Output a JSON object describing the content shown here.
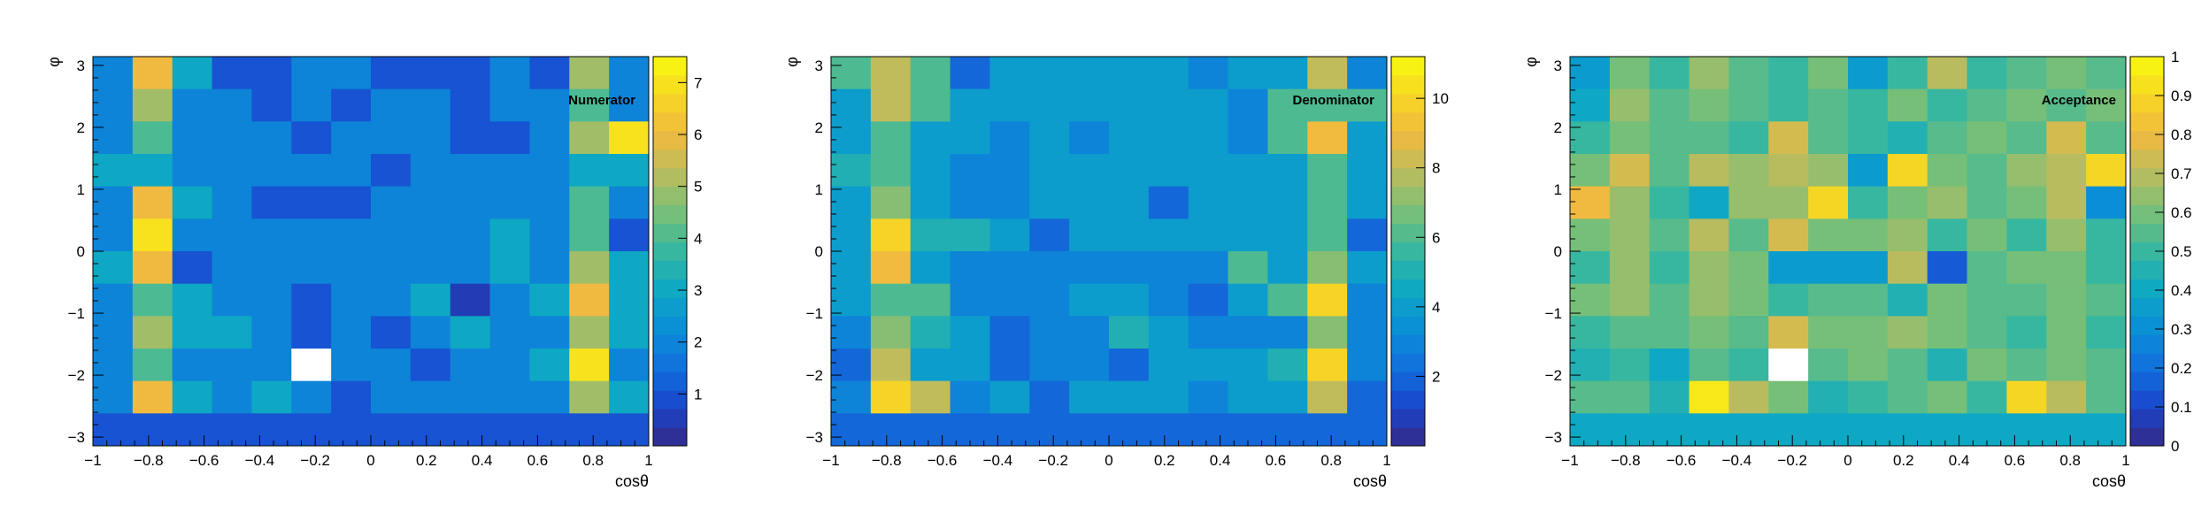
{
  "chart_data": [
    {
      "type": "heatmap",
      "title": "Numerator",
      "xlabel": "cosθ",
      "ylabel": "φ",
      "xlim": [
        -1,
        1
      ],
      "ylim": [
        -3.14159,
        3.14159
      ],
      "x_ticks": [
        "−1",
        "−0.8",
        "−0.6",
        "−0.4",
        "−0.2",
        "0",
        "0.2",
        "0.4",
        "0.6",
        "0.8",
        "1"
      ],
      "y_ticks": [
        "−3",
        "−2",
        "−1",
        "0",
        "1",
        "2",
        "3"
      ],
      "colorbar_ticks": [
        "1",
        "2",
        "3",
        "4",
        "5",
        "6",
        "7"
      ],
      "zlim": [
        0,
        7.5
      ],
      "grid": false,
      "nx": 14,
      "ny": 12,
      "values": [
        [
          2,
          6,
          3,
          1,
          1,
          2,
          2,
          1,
          1,
          1,
          2,
          1,
          5,
          2
        ],
        [
          2,
          5,
          2,
          2,
          1,
          2,
          1,
          2,
          2,
          1,
          2,
          2,
          4,
          2
        ],
        [
          2,
          4,
          2,
          2,
          2,
          1,
          2,
          2,
          2,
          1,
          1,
          2,
          5,
          7
        ],
        [
          3,
          3,
          2,
          2,
          2,
          2,
          2,
          1,
          2,
          2,
          2,
          2,
          3,
          3
        ],
        [
          2,
          6,
          3,
          2,
          1,
          1,
          1,
          2,
          2,
          2,
          2,
          2,
          4,
          2
        ],
        [
          2,
          7,
          2,
          2,
          2,
          2,
          2,
          2,
          2,
          2,
          3,
          2,
          4,
          1
        ],
        [
          3,
          6,
          1,
          2,
          2,
          2,
          2,
          2,
          2,
          2,
          3,
          2,
          5,
          3
        ],
        [
          2,
          4,
          3,
          2,
          2,
          1,
          2,
          2,
          3,
          0.5,
          2,
          3,
          6,
          3
        ],
        [
          2,
          5,
          3,
          3,
          2,
          1,
          2,
          1,
          2,
          3,
          2,
          2,
          5,
          3
        ],
        [
          2,
          4,
          2,
          2,
          2,
          0,
          2,
          2,
          1,
          2,
          2,
          3,
          7,
          2
        ],
        [
          2,
          6,
          3,
          2,
          3,
          2,
          1,
          2,
          2,
          2,
          2,
          2,
          5,
          3
        ],
        [
          1,
          1,
          1,
          1,
          1,
          1,
          1,
          1,
          1,
          1,
          1,
          1,
          1,
          1
        ]
      ]
    },
    {
      "type": "heatmap",
      "title": "Denominator",
      "xlabel": "cosθ",
      "ylabel": "φ",
      "xlim": [
        -1,
        1
      ],
      "ylim": [
        -3.14159,
        3.14159
      ],
      "x_ticks": [
        "−1",
        "−0.8",
        "−0.6",
        "−0.4",
        "−0.2",
        "0",
        "0.2",
        "0.4",
        "0.6",
        "0.8",
        "1"
      ],
      "y_ticks": [
        "−3",
        "−2",
        "−1",
        "0",
        "1",
        "2",
        "3"
      ],
      "colorbar_ticks": [
        "2",
        "4",
        "6",
        "8",
        "10"
      ],
      "zlim": [
        0,
        11.2
      ],
      "grid": false,
      "nx": 14,
      "ny": 12,
      "values": [
        [
          6,
          8,
          6,
          2,
          4,
          4,
          4,
          4,
          4,
          3,
          4,
          4,
          8,
          3
        ],
        [
          4,
          8,
          6,
          4,
          4,
          4,
          4,
          4,
          4,
          4,
          3,
          6,
          6,
          6
        ],
        [
          4,
          6,
          4,
          4,
          3,
          4,
          3,
          4,
          4,
          4,
          3,
          6,
          9,
          4
        ],
        [
          5,
          6,
          4,
          3,
          3,
          4,
          4,
          4,
          4,
          4,
          4,
          4,
          6,
          4
        ],
        [
          4,
          7,
          4,
          3,
          3,
          4,
          4,
          4,
          2,
          4,
          4,
          4,
          6,
          4
        ],
        [
          4,
          10,
          5,
          5,
          4,
          2,
          4,
          4,
          4,
          4,
          4,
          4,
          6,
          2
        ],
        [
          4,
          9,
          4,
          3,
          3,
          3,
          3,
          3,
          3,
          3,
          6,
          4,
          7,
          4
        ],
        [
          4,
          6,
          6,
          3,
          3,
          3,
          4,
          4,
          3,
          2,
          4,
          6,
          10,
          3
        ],
        [
          3,
          7,
          5,
          4,
          2,
          3,
          3,
          5,
          4,
          3,
          3,
          3,
          7,
          3
        ],
        [
          2,
          8,
          4,
          4,
          2,
          3,
          3,
          2,
          4,
          4,
          4,
          5,
          10,
          3
        ],
        [
          3,
          10,
          8,
          3,
          4,
          2,
          4,
          4,
          4,
          3,
          4,
          4,
          8,
          2
        ],
        [
          2,
          2,
          2,
          2,
          2,
          2,
          2,
          2,
          2,
          2,
          2,
          2,
          2,
          2
        ]
      ]
    },
    {
      "type": "heatmap",
      "title": "Acceptance",
      "xlabel": "cosθ",
      "ylabel": "φ",
      "xlim": [
        -1,
        1
      ],
      "ylim": [
        -3.14159,
        3.14159
      ],
      "x_ticks": [
        "−1",
        "−0.8",
        "−0.6",
        "−0.4",
        "−0.2",
        "0",
        "0.2",
        "0.4",
        "0.6",
        "0.8",
        "1"
      ],
      "y_ticks": [
        "−3",
        "−2",
        "−1",
        "0",
        "1",
        "2",
        "3"
      ],
      "colorbar_ticks": [
        "0",
        "0.1",
        "0.2",
        "0.3",
        "0.4",
        "0.5",
        "0.6",
        "0.7",
        "0.8",
        "0.9",
        "1"
      ],
      "zlim": [
        0,
        1
      ],
      "grid": false,
      "nx": 14,
      "ny": 12,
      "values": [
        [
          0.35,
          0.6,
          0.5,
          0.65,
          0.55,
          0.5,
          0.6,
          0.35,
          0.5,
          0.7,
          0.5,
          0.55,
          0.6,
          0.55
        ],
        [
          0.4,
          0.65,
          0.55,
          0.6,
          0.55,
          0.5,
          0.55,
          0.5,
          0.6,
          0.5,
          0.55,
          0.6,
          0.55,
          0.6
        ],
        [
          0.5,
          0.6,
          0.55,
          0.55,
          0.5,
          0.75,
          0.55,
          0.5,
          0.45,
          0.55,
          0.6,
          0.55,
          0.75,
          0.55
        ],
        [
          0.6,
          0.75,
          0.55,
          0.7,
          0.65,
          0.7,
          0.65,
          0.35,
          0.9,
          0.6,
          0.55,
          0.65,
          0.7,
          0.9
        ],
        [
          0.8,
          0.65,
          0.5,
          0.4,
          0.65,
          0.65,
          0.9,
          0.5,
          0.6,
          0.65,
          0.55,
          0.6,
          0.7,
          0.3
        ],
        [
          0.6,
          0.65,
          0.55,
          0.7,
          0.55,
          0.75,
          0.6,
          0.6,
          0.65,
          0.5,
          0.6,
          0.5,
          0.65,
          0.5
        ],
        [
          0.5,
          0.65,
          0.5,
          0.65,
          0.6,
          0.35,
          0.35,
          0.35,
          0.7,
          0.15,
          0.55,
          0.6,
          0.6,
          0.5
        ],
        [
          0.6,
          0.65,
          0.55,
          0.65,
          0.6,
          0.5,
          0.55,
          0.55,
          0.45,
          0.6,
          0.55,
          0.55,
          0.6,
          0.55
        ],
        [
          0.5,
          0.55,
          0.55,
          0.6,
          0.55,
          0.75,
          0.6,
          0.6,
          0.65,
          0.6,
          0.55,
          0.5,
          0.6,
          0.5
        ],
        [
          0.45,
          0.5,
          0.4,
          0.55,
          0.5,
          0,
          0.55,
          0.6,
          0.55,
          0.45,
          0.6,
          0.55,
          0.6,
          0.55
        ],
        [
          0.55,
          0.55,
          0.45,
          0.95,
          0.7,
          0.6,
          0.45,
          0.5,
          0.55,
          0.6,
          0.5,
          0.9,
          0.7,
          0.55
        ],
        [
          0.4,
          0.4,
          0.4,
          0.4,
          0.4,
          0.4,
          0.4,
          0.4,
          0.4,
          0.4,
          0.4,
          0.4,
          0.4,
          0.4
        ]
      ]
    }
  ]
}
